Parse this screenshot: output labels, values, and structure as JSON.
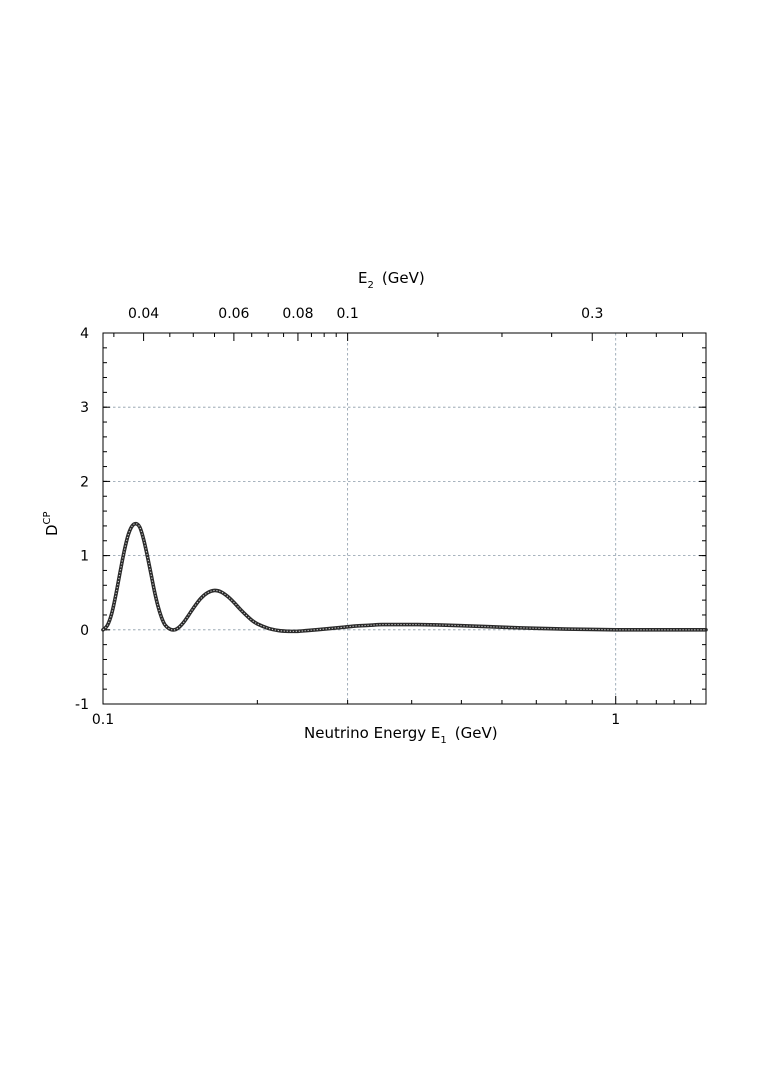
{
  "chart_data": {
    "type": "line",
    "title": "",
    "xlabel": "Neutrino Energy E",
    "xlabel_sub": "1",
    "xlabel_unit": "(GeV)",
    "top_axis_label": "E",
    "top_axis_sub": "2",
    "top_axis_unit": "(GeV)",
    "ylabel": "D",
    "ylabel_sub": "CP",
    "x_scale": "log",
    "xlim": [
      0.1,
      1.5
    ],
    "ylim": [
      -1,
      4
    ],
    "x_ticks": [
      {
        "value": 0.1,
        "label": "0.1"
      },
      {
        "value": 1,
        "label": "1"
      }
    ],
    "x_top_ticks": [
      {
        "value": 0.04,
        "label": "0.04"
      },
      {
        "value": 0.06,
        "label": "0.06"
      },
      {
        "value": 0.08,
        "label": "0.08"
      },
      {
        "value": 0.1,
        "label": "0.1"
      },
      {
        "value": 0.3,
        "label": "0.3"
      }
    ],
    "y_ticks": [
      {
        "value": -1,
        "label": "-1"
      },
      {
        "value": 0,
        "label": "0"
      },
      {
        "value": 1,
        "label": "1"
      },
      {
        "value": 2,
        "label": "2"
      },
      {
        "value": 3,
        "label": "3"
      },
      {
        "value": 4,
        "label": "4"
      }
    ],
    "grid": true,
    "legend": "none",
    "series": [
      {
        "x": [
          0.1,
          0.102,
          0.104,
          0.106,
          0.108,
          0.11,
          0.112,
          0.114,
          0.116,
          0.118,
          0.12,
          0.122,
          0.124,
          0.126,
          0.128,
          0.13,
          0.132,
          0.135,
          0.138,
          0.141,
          0.144,
          0.147,
          0.15,
          0.155,
          0.16,
          0.165,
          0.17,
          0.175,
          0.18,
          0.185,
          0.19,
          0.195,
          0.2,
          0.21,
          0.22,
          0.23,
          0.24,
          0.25,
          0.27,
          0.29,
          0.31,
          0.33,
          0.35,
          0.38,
          0.41,
          0.45,
          0.5,
          0.55,
          0.6,
          0.7,
          0.8,
          0.9,
          1.0,
          1.1,
          1.2,
          1.3,
          1.4,
          1.5
        ],
        "y": [
          0.0,
          0.06,
          0.22,
          0.48,
          0.78,
          1.06,
          1.28,
          1.4,
          1.43,
          1.38,
          1.22,
          1.0,
          0.76,
          0.52,
          0.32,
          0.17,
          0.07,
          0.01,
          0.0,
          0.04,
          0.11,
          0.2,
          0.29,
          0.42,
          0.5,
          0.53,
          0.51,
          0.45,
          0.37,
          0.28,
          0.2,
          0.13,
          0.08,
          0.02,
          -0.01,
          -0.02,
          -0.02,
          -0.01,
          0.01,
          0.03,
          0.05,
          0.06,
          0.07,
          0.07,
          0.07,
          0.065,
          0.055,
          0.045,
          0.035,
          0.02,
          0.01,
          0.005,
          0.0,
          0.0,
          0.0,
          0.0,
          0.0,
          0.0
        ]
      }
    ]
  }
}
